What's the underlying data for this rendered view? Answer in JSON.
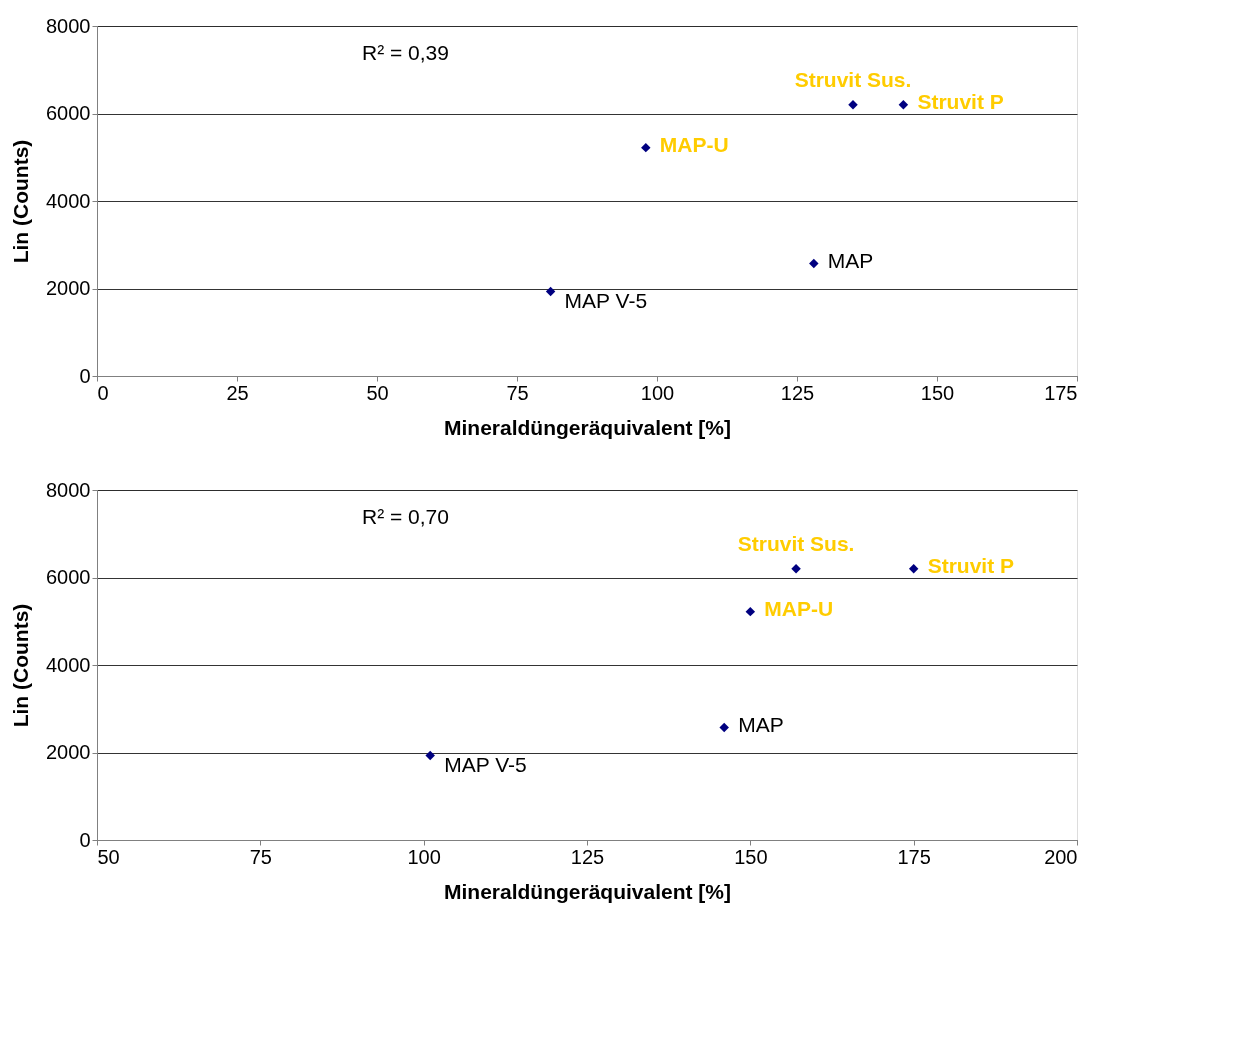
{
  "chart_data": [
    {
      "type": "scatter",
      "xlabel": "Mineraldüngeräquivalent [%]",
      "ylabel": "Lin (Counts)",
      "annotations": [
        "R² = 0,39"
      ],
      "xlim": [
        0,
        175
      ],
      "xticks": [
        0,
        25,
        50,
        75,
        100,
        125,
        150,
        175
      ],
      "ylim": [
        0,
        8000
      ],
      "yticks": [
        0,
        2000,
        4000,
        6000,
        8000
      ],
      "grid": "y",
      "marker": "diamond",
      "series": [
        {
          "color": "#000080",
          "x": [
            98,
            135,
            144
          ],
          "values": [
            5220,
            6200,
            6200
          ],
          "value_labels": [
            "MAP-U",
            "Struvit Sus.",
            "Struvit P"
          ]
        },
        {
          "color": "#000080",
          "x": [
            81,
            128
          ],
          "values": [
            1930,
            2570
          ],
          "value_labels": [
            "MAP V-5",
            "MAP"
          ]
        }
      ]
    },
    {
      "type": "scatter",
      "xlabel": "Mineraldüngeräquivalent [%]",
      "ylabel": "Lin (Counts)",
      "annotations": [
        "R² = 0,70"
      ],
      "xlim": [
        50,
        200
      ],
      "xticks": [
        50,
        75,
        100,
        125,
        150,
        175,
        200
      ],
      "ylim": [
        0,
        8000
      ],
      "yticks": [
        0,
        2000,
        4000,
        6000,
        8000
      ],
      "grid": "y",
      "marker": "diamond",
      "series": [
        {
          "color": "#000080",
          "x": [
            150,
            157,
            175
          ],
          "values": [
            5220,
            6200,
            6200
          ],
          "value_labels": [
            "MAP-U",
            "Struvit Sus.",
            "Struvit P"
          ]
        },
        {
          "color": "#000080",
          "x": [
            101,
            146
          ],
          "values": [
            1930,
            2570
          ],
          "value_labels": [
            "MAP V-5",
            "MAP"
          ]
        }
      ]
    }
  ]
}
